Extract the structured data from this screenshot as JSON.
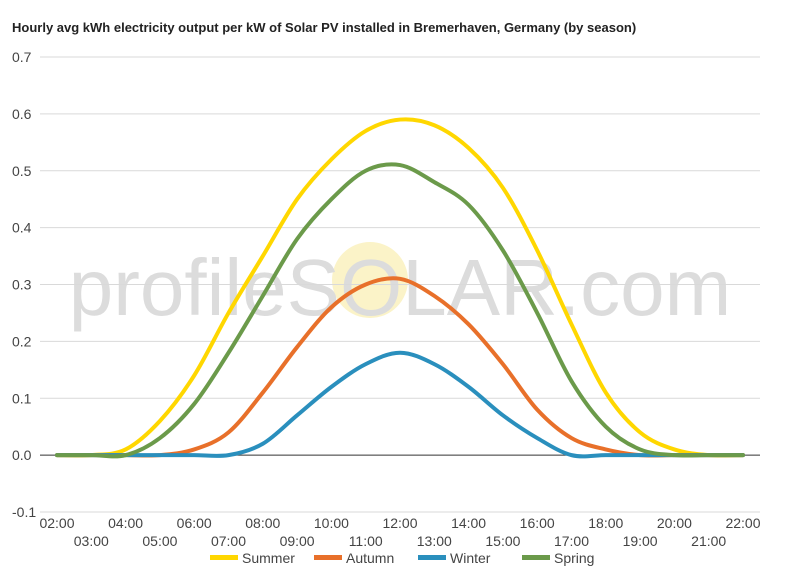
{
  "chart_data": {
    "type": "line",
    "title": "Hourly avg kWh electricity output per kW of Solar PV installed in Bremerhaven, Germany (by season)",
    "watermark": "profileSOLAR.com",
    "xlabel": "",
    "ylabel": "",
    "ylim": [
      -0.1,
      0.7
    ],
    "yticks": [
      -0.1,
      0.0,
      0.1,
      0.2,
      0.3,
      0.4,
      0.5,
      0.6,
      0.7
    ],
    "ytick_labels": [
      "-0.1",
      "0.0",
      "0.1",
      "0.2",
      "0.3",
      "0.4",
      "0.5",
      "0.6",
      "0.7"
    ],
    "x": [
      "02:00",
      "03:00",
      "04:00",
      "05:00",
      "06:00",
      "07:00",
      "08:00",
      "09:00",
      "10:00",
      "11:00",
      "12:00",
      "13:00",
      "14:00",
      "15:00",
      "16:00",
      "17:00",
      "18:00",
      "19:00",
      "20:00",
      "21:00",
      "22:00"
    ],
    "grid": true,
    "legend_position": "bottom",
    "series": [
      {
        "name": "Summer",
        "color": "#ffd700",
        "values": [
          0,
          0,
          0.01,
          0.06,
          0.14,
          0.25,
          0.35,
          0.45,
          0.52,
          0.57,
          0.59,
          0.58,
          0.54,
          0.47,
          0.36,
          0.23,
          0.11,
          0.04,
          0.01,
          0,
          0
        ]
      },
      {
        "name": "Autumn",
        "color": "#e8702a",
        "values": [
          0,
          0,
          0,
          0,
          0.01,
          0.04,
          0.11,
          0.19,
          0.26,
          0.3,
          0.31,
          0.28,
          0.23,
          0.16,
          0.08,
          0.03,
          0.01,
          0,
          0,
          0,
          0
        ]
      },
      {
        "name": "Winter",
        "color": "#2a8fbd",
        "values": [
          0,
          0,
          0,
          0,
          0,
          0,
          0.02,
          0.07,
          0.12,
          0.16,
          0.18,
          0.16,
          0.12,
          0.07,
          0.03,
          0,
          0,
          0,
          0,
          0,
          0
        ]
      },
      {
        "name": "Spring",
        "color": "#6b9a4a",
        "values": [
          0,
          0,
          0,
          0.03,
          0.09,
          0.18,
          0.28,
          0.38,
          0.45,
          0.5,
          0.51,
          0.48,
          0.44,
          0.36,
          0.25,
          0.13,
          0.05,
          0.01,
          0,
          0,
          0
        ]
      }
    ]
  }
}
